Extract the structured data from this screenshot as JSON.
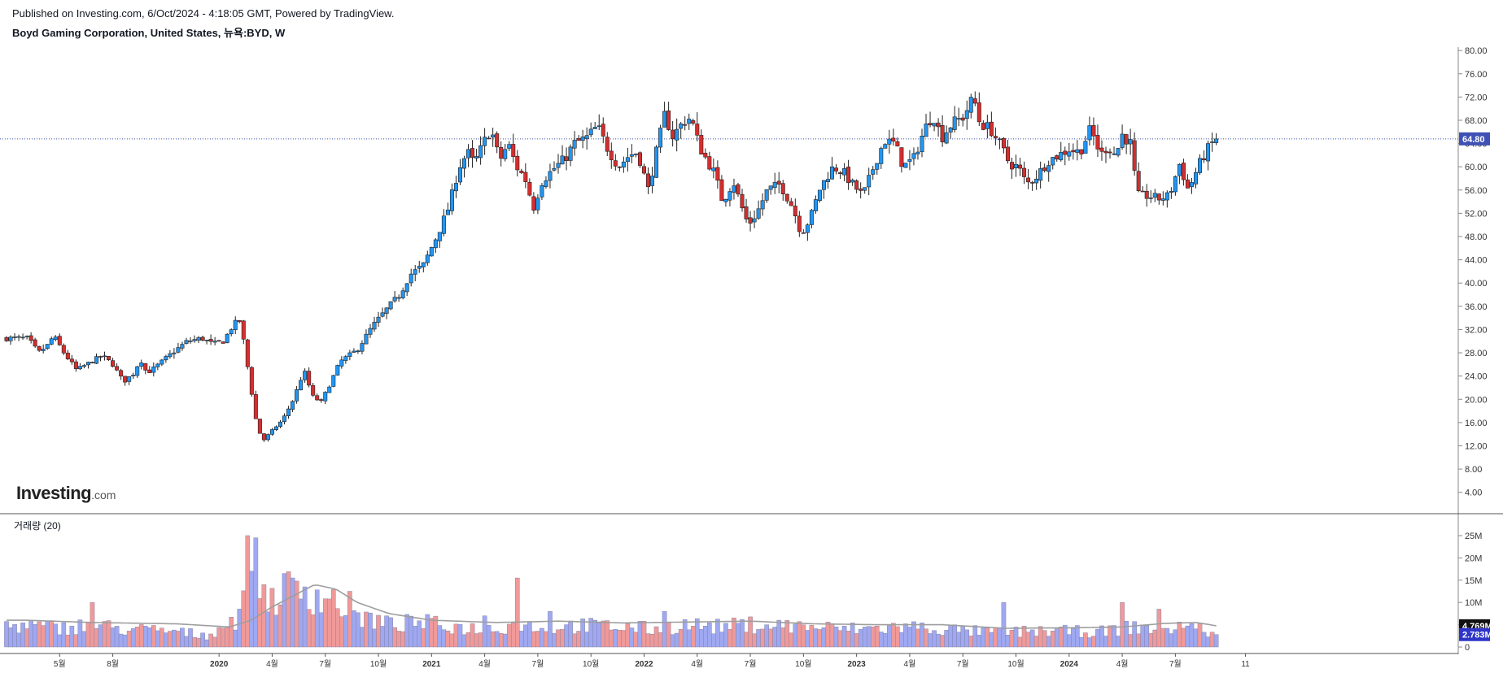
{
  "header": {
    "published": "Published on Investing.com, 6/Oct/2024 - 4:18:05 GMT, Powered by TradingView.",
    "symbol": "Boyd Gaming Corporation, United States, 뉴욕:BYD, W"
  },
  "logo": {
    "text": "Investing",
    "suffix": ".com"
  },
  "volume_panel": {
    "title": "거래량 (20)"
  },
  "colors": {
    "up": "#2196f3",
    "down": "#d32f2f",
    "up_volume": "#9fa8f0",
    "down_volume": "#ef9a9a",
    "ma": "#9e9e9e",
    "last_price": "#3f51b5"
  },
  "chart_data": [
    {
      "type": "candlestick",
      "title": "Boyd Gaming Corporation, United States, 뉴욕:BYD, W",
      "xlabel": "",
      "ylabel": "",
      "interval": "weekly",
      "x_range": [
        "2019-02",
        "2024-10"
      ],
      "ylim": [
        2,
        81
      ],
      "y_ticks": [
        "80.00",
        "76.00",
        "72.00",
        "68.00",
        "64.00",
        "60.00",
        "56.00",
        "52.00",
        "48.00",
        "44.00",
        "40.00",
        "36.00",
        "32.00",
        "28.00",
        "24.00",
        "20.00",
        "16.00",
        "12.00",
        "8.00",
        "4.00"
      ],
      "x_ticks": [
        {
          "label": "5월",
          "t": 0.25,
          "year": false
        },
        {
          "label": "8월",
          "t": 0.5,
          "year": false
        },
        {
          "label": "2020",
          "t": 1.0,
          "year": true
        },
        {
          "label": "4월",
          "t": 1.25,
          "year": false
        },
        {
          "label": "7월",
          "t": 1.5,
          "year": false
        },
        {
          "label": "10월",
          "t": 1.75,
          "year": false
        },
        {
          "label": "2021",
          "t": 2.0,
          "year": true
        },
        {
          "label": "4월",
          "t": 2.25,
          "year": false
        },
        {
          "label": "7월",
          "t": 2.5,
          "year": false
        },
        {
          "label": "10월",
          "t": 2.75,
          "year": false
        },
        {
          "label": "2022",
          "t": 3.0,
          "year": true
        },
        {
          "label": "4월",
          "t": 3.25,
          "year": false
        },
        {
          "label": "7월",
          "t": 3.5,
          "year": false
        },
        {
          "label": "10월",
          "t": 3.75,
          "year": false
        },
        {
          "label": "2023",
          "t": 4.0,
          "year": true
        },
        {
          "label": "4월",
          "t": 4.25,
          "year": false
        },
        {
          "label": "7월",
          "t": 4.5,
          "year": false
        },
        {
          "label": "10월",
          "t": 4.75,
          "year": false
        },
        {
          "label": "2024",
          "t": 5.0,
          "year": true
        },
        {
          "label": "4월",
          "t": 5.25,
          "year": false
        },
        {
          "label": "7월",
          "t": 5.5,
          "year": false
        },
        {
          "label": "11",
          "t": 5.83,
          "year": false
        }
      ],
      "close_anchors": [
        [
          0.1,
          30.5
        ],
        [
          0.15,
          28.0
        ],
        [
          0.2,
          29.5
        ],
        [
          0.22,
          31.0
        ],
        [
          0.27,
          28.0
        ],
        [
          0.33,
          25.0
        ],
        [
          0.4,
          26.5
        ],
        [
          0.45,
          27.5
        ],
        [
          0.5,
          26.0
        ],
        [
          0.55,
          23.0
        ],
        [
          0.6,
          24.5
        ],
        [
          0.63,
          27.0
        ],
        [
          0.66,
          24.5
        ],
        [
          0.7,
          25.5
        ],
        [
          0.78,
          28.0
        ],
        [
          0.85,
          30.0
        ],
        [
          0.92,
          30.5
        ],
        [
          0.97,
          29.5
        ],
        [
          1.02,
          30.0
        ],
        [
          1.07,
          33.0
        ],
        [
          1.1,
          33.5
        ],
        [
          1.12,
          29.0
        ],
        [
          1.15,
          22.0
        ],
        [
          1.18,
          15.0
        ],
        [
          1.21,
          13.0
        ],
        [
          1.26,
          15.0
        ],
        [
          1.3,
          16.5
        ],
        [
          1.35,
          20.0
        ],
        [
          1.4,
          25.0
        ],
        [
          1.44,
          20.5
        ],
        [
          1.48,
          19.5
        ],
        [
          1.52,
          22.5
        ],
        [
          1.57,
          26.5
        ],
        [
          1.65,
          28.5
        ],
        [
          1.72,
          32.5
        ],
        [
          1.8,
          36.0
        ],
        [
          1.85,
          38.0
        ],
        [
          1.9,
          41.5
        ],
        [
          1.96,
          43.0
        ],
        [
          2.03,
          48.5
        ],
        [
          2.08,
          53.0
        ],
        [
          2.13,
          60.0
        ],
        [
          2.17,
          62.5
        ],
        [
          2.2,
          60.5
        ],
        [
          2.25,
          64.5
        ],
        [
          2.28,
          66.5
        ],
        [
          2.32,
          61.0
        ],
        [
          2.36,
          64.0
        ],
        [
          2.4,
          60.0
        ],
        [
          2.44,
          58.0
        ],
        [
          2.48,
          53.0
        ],
        [
          2.52,
          57.5
        ],
        [
          2.57,
          59.5
        ],
        [
          2.63,
          61.5
        ],
        [
          2.67,
          64.0
        ],
        [
          2.73,
          65.0
        ],
        [
          2.78,
          67.0
        ],
        [
          2.83,
          63.0
        ],
        [
          2.88,
          60.0
        ],
        [
          2.93,
          62.0
        ],
        [
          2.97,
          62.5
        ],
        [
          3.02,
          56.0
        ],
        [
          3.06,
          63.0
        ],
        [
          3.1,
          69.5
        ],
        [
          3.13,
          65.0
        ],
        [
          3.18,
          67.5
        ],
        [
          3.22,
          68.5
        ],
        [
          3.26,
          63.5
        ],
        [
          3.29,
          61.5
        ],
        [
          3.33,
          59.0
        ],
        [
          3.37,
          54.0
        ],
        [
          3.42,
          57.5
        ],
        [
          3.46,
          53.0
        ],
        [
          3.49,
          50.0
        ],
        [
          3.53,
          52.0
        ],
        [
          3.58,
          56.0
        ],
        [
          3.64,
          57.0
        ],
        [
          3.7,
          53.0
        ],
        [
          3.74,
          48.5
        ],
        [
          3.78,
          51.0
        ],
        [
          3.83,
          56.5
        ],
        [
          3.89,
          60.0
        ],
        [
          3.94,
          59.0
        ],
        [
          3.98,
          57.0
        ],
        [
          4.03,
          55.0
        ],
        [
          4.08,
          60.0
        ],
        [
          4.13,
          64.5
        ],
        [
          4.18,
          64.0
        ],
        [
          4.22,
          60.0
        ],
        [
          4.27,
          61.5
        ],
        [
          4.32,
          66.5
        ],
        [
          4.36,
          69.0
        ],
        [
          4.4,
          65.0
        ],
        [
          4.45,
          67.5
        ],
        [
          4.5,
          68.5
        ],
        [
          4.55,
          72.0
        ],
        [
          4.58,
          67.5
        ],
        [
          4.63,
          66.5
        ],
        [
          4.68,
          63.5
        ],
        [
          4.72,
          60.5
        ],
        [
          4.76,
          60.0
        ],
        [
          4.8,
          57.0
        ],
        [
          4.85,
          58.5
        ],
        [
          4.9,
          61.0
        ],
        [
          4.95,
          62.0
        ],
        [
          5.0,
          63.0
        ],
        [
          5.05,
          62.5
        ],
        [
          5.1,
          66.5
        ],
        [
          5.15,
          62.0
        ],
        [
          5.18,
          63.5
        ],
        [
          5.22,
          62.0
        ],
        [
          5.25,
          65.5
        ],
        [
          5.29,
          64.0
        ],
        [
          5.32,
          55.0
        ],
        [
          5.37,
          55.0
        ],
        [
          5.42,
          54.5
        ],
        [
          5.47,
          55.0
        ],
        [
          5.52,
          60.5
        ],
        [
          5.56,
          56.0
        ],
        [
          5.62,
          61.0
        ],
        [
          5.66,
          63.5
        ],
        [
          5.69,
          64.8
        ]
      ],
      "volume_anchors": [
        [
          0.1,
          4.8
        ],
        [
          0.25,
          4.2
        ],
        [
          0.4,
          5.0
        ],
        [
          0.55,
          4.0
        ],
        [
          0.75,
          3.6
        ],
        [
          0.95,
          2.6
        ],
        [
          1.1,
          7.0
        ],
        [
          1.17,
          18.0
        ],
        [
          1.22,
          10.0
        ],
        [
          1.32,
          13.0
        ],
        [
          1.42,
          12.0
        ],
        [
          1.52,
          11.0
        ],
        [
          1.65,
          7.0
        ],
        [
          1.8,
          5.0
        ],
        [
          1.95,
          5.5
        ],
        [
          2.1,
          4.5
        ],
        [
          2.25,
          4.0
        ],
        [
          2.4,
          5.0
        ],
        [
          2.55,
          4.5
        ],
        [
          2.7,
          4.8
        ],
        [
          2.9,
          4.5
        ],
        [
          3.05,
          4.0
        ],
        [
          3.2,
          5.0
        ],
        [
          3.35,
          4.5
        ],
        [
          3.5,
          5.0
        ],
        [
          3.65,
          4.8
        ],
        [
          3.8,
          4.5
        ],
        [
          3.95,
          4.0
        ],
        [
          4.1,
          4.2
        ],
        [
          4.25,
          4.5
        ],
        [
          4.4,
          4.0
        ],
        [
          4.55,
          3.5
        ],
        [
          4.7,
          3.2
        ],
        [
          4.85,
          3.6
        ],
        [
          5.0,
          3.5
        ],
        [
          5.15,
          3.4
        ],
        [
          5.3,
          4.5
        ],
        [
          5.45,
          4.0
        ],
        [
          5.55,
          5.0
        ],
        [
          5.69,
          2.783
        ]
      ],
      "volume_spikes": [
        [
          1.14,
          25.0
        ],
        [
          1.16,
          17.0
        ],
        [
          1.22,
          14.0
        ],
        [
          1.3,
          16.5
        ],
        [
          1.34,
          15.5
        ],
        [
          1.4,
          13.5
        ],
        [
          1.62,
          12.5
        ],
        [
          2.25,
          7.0
        ],
        [
          2.4,
          15.5
        ],
        [
          2.55,
          8.0
        ],
        [
          3.1,
          8.0
        ],
        [
          5.25,
          10.0
        ],
        [
          5.42,
          8.5
        ],
        [
          4.7,
          10.0
        ],
        [
          0.4,
          10.0
        ]
      ],
      "volume_ma_anchors": [
        [
          0.1,
          6.0
        ],
        [
          0.4,
          5.5
        ],
        [
          0.8,
          5.2
        ],
        [
          1.05,
          4.5
        ],
        [
          1.15,
          6.0
        ],
        [
          1.25,
          9.0
        ],
        [
          1.35,
          11.5
        ],
        [
          1.45,
          14.0
        ],
        [
          1.55,
          13.0
        ],
        [
          1.65,
          10.0
        ],
        [
          1.8,
          7.5
        ],
        [
          2.0,
          6.0
        ],
        [
          2.3,
          5.5
        ],
        [
          2.6,
          5.8
        ],
        [
          2.9,
          5.4
        ],
        [
          3.2,
          5.6
        ],
        [
          3.5,
          5.8
        ],
        [
          3.8,
          5.2
        ],
        [
          4.1,
          5.0
        ],
        [
          4.4,
          5.0
        ],
        [
          4.7,
          4.2
        ],
        [
          5.0,
          4.3
        ],
        [
          5.25,
          4.5
        ],
        [
          5.45,
          5.3
        ],
        [
          5.6,
          5.5
        ],
        [
          5.69,
          4.769
        ]
      ],
      "volume_ylim": [
        0,
        27
      ],
      "volume_ticks": [
        "25M",
        "20M",
        "15M",
        "10M",
        "5M",
        "0"
      ],
      "last_close": "64.80",
      "volume_ma_value": "4.769M",
      "last_volume": "2.783M"
    }
  ]
}
